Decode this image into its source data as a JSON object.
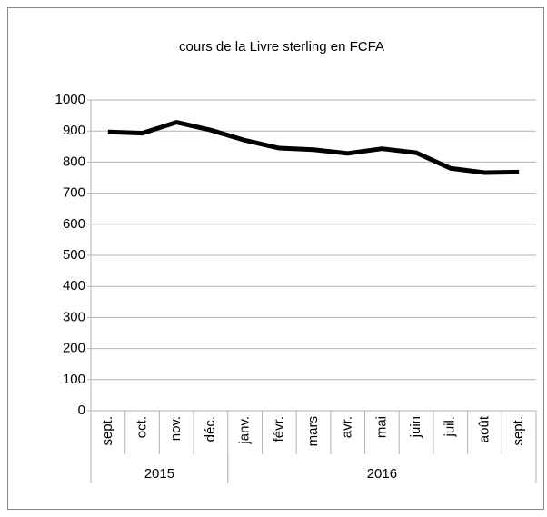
{
  "chart_data": {
    "type": "line",
    "title": "cours de la Livre sterling en FCFA",
    "categories": [
      "sept.",
      "oct.",
      "nov.",
      "déc.",
      "janv.",
      "févr.",
      "mars",
      "avr.",
      "mai",
      "juin",
      "juil.",
      "août",
      "sept."
    ],
    "groups": [
      {
        "label": "2015",
        "span": 4
      },
      {
        "label": "2016",
        "span": 9
      }
    ],
    "series": [
      {
        "color": "#000000",
        "values": [
          897,
          893,
          928,
          903,
          870,
          845,
          840,
          828,
          843,
          830,
          780,
          766,
          768
        ]
      }
    ],
    "ylim": [
      0,
      1000
    ],
    "yticks": [
      0,
      100,
      200,
      300,
      400,
      500,
      600,
      700,
      800,
      900,
      1000
    ],
    "grid": true
  }
}
